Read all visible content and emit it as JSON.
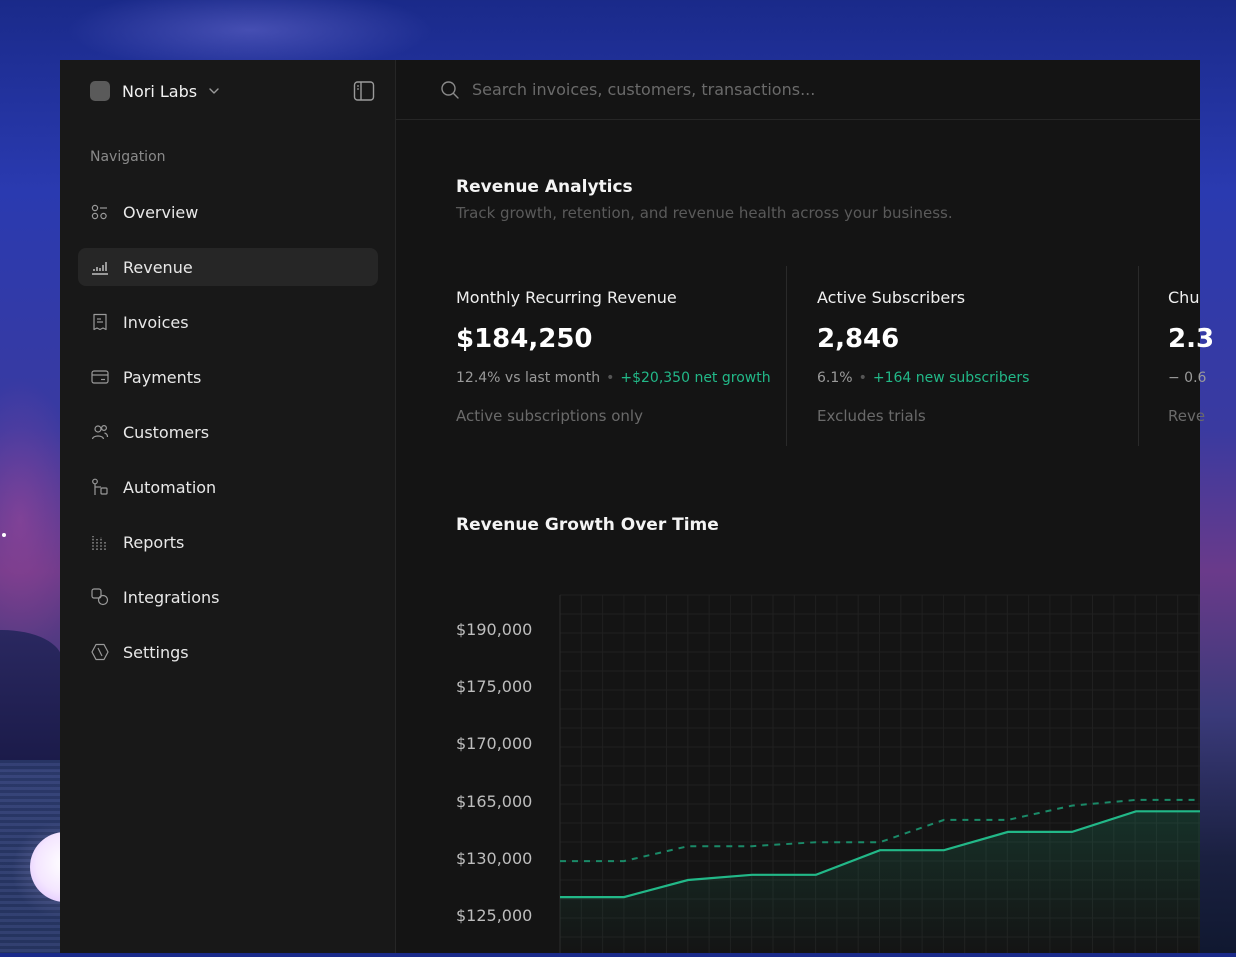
{
  "app": {
    "workspace_name": "Nori Labs"
  },
  "sidebar": {
    "heading": "Navigation",
    "items": [
      {
        "label": "Overview",
        "icon": "overview-icon",
        "active": false
      },
      {
        "label": "Revenue",
        "icon": "revenue-icon",
        "active": true
      },
      {
        "label": "Invoices",
        "icon": "invoice-icon",
        "active": false
      },
      {
        "label": "Payments",
        "icon": "card-icon",
        "active": false
      },
      {
        "label": "Customers",
        "icon": "users-icon",
        "active": false
      },
      {
        "label": "Automation",
        "icon": "automation-icon",
        "active": false
      },
      {
        "label": "Reports",
        "icon": "reports-icon",
        "active": false
      },
      {
        "label": "Integrations",
        "icon": "integrations-icon",
        "active": false
      },
      {
        "label": "Settings",
        "icon": "settings-icon",
        "active": false
      }
    ]
  },
  "search": {
    "placeholder": "Search invoices, customers, transactions..."
  },
  "page": {
    "title": "Revenue Analytics",
    "subtitle": "Track growth, retention, and revenue health across your business."
  },
  "kpis": [
    {
      "label": "Monthly Recurring Revenue",
      "value": "$184,250",
      "change": "12.4% vs last month",
      "growth": "+$20,350 net growth",
      "note": "Active subscriptions only"
    },
    {
      "label": "Active Subscribers",
      "value": "2,846",
      "change": "6.1%",
      "growth": "+164 new subscribers",
      "note": "Excludes trials"
    },
    {
      "label": "Chu",
      "value": "2.3",
      "change": "− 0.6",
      "growth": "",
      "note": "Reve"
    }
  ],
  "chart": {
    "title": "Revenue Growth Over Time"
  },
  "colors": {
    "accent": "#22b888",
    "background": "#141414",
    "sidebar": "#181818"
  },
  "chart_data": {
    "type": "line",
    "title": "Revenue Growth Over Time",
    "y_tick_labels": [
      "$190,000",
      "$175,000",
      "$170,000",
      "$165,000",
      "$130,000",
      "$125,000"
    ],
    "series": [
      {
        "style": "solid",
        "values_tick_index": [
          4.67,
          4.67,
          4.37,
          4.28,
          4.28,
          3.85,
          3.85,
          3.53,
          3.53,
          3.17,
          3.17
        ]
      },
      {
        "style": "dashed",
        "values_tick_index": [
          4.04,
          4.04,
          3.78,
          3.78,
          3.71,
          3.71,
          3.32,
          3.32,
          3.07,
          2.97,
          2.97
        ]
      }
    ],
    "note": "Series values are positions on the printed y-tick scale (0 = $190,000 tick, 5 = $125,000 tick); the axis ticks are non-uniform as printed.",
    "grid": true,
    "fill_under_solid": true
  }
}
